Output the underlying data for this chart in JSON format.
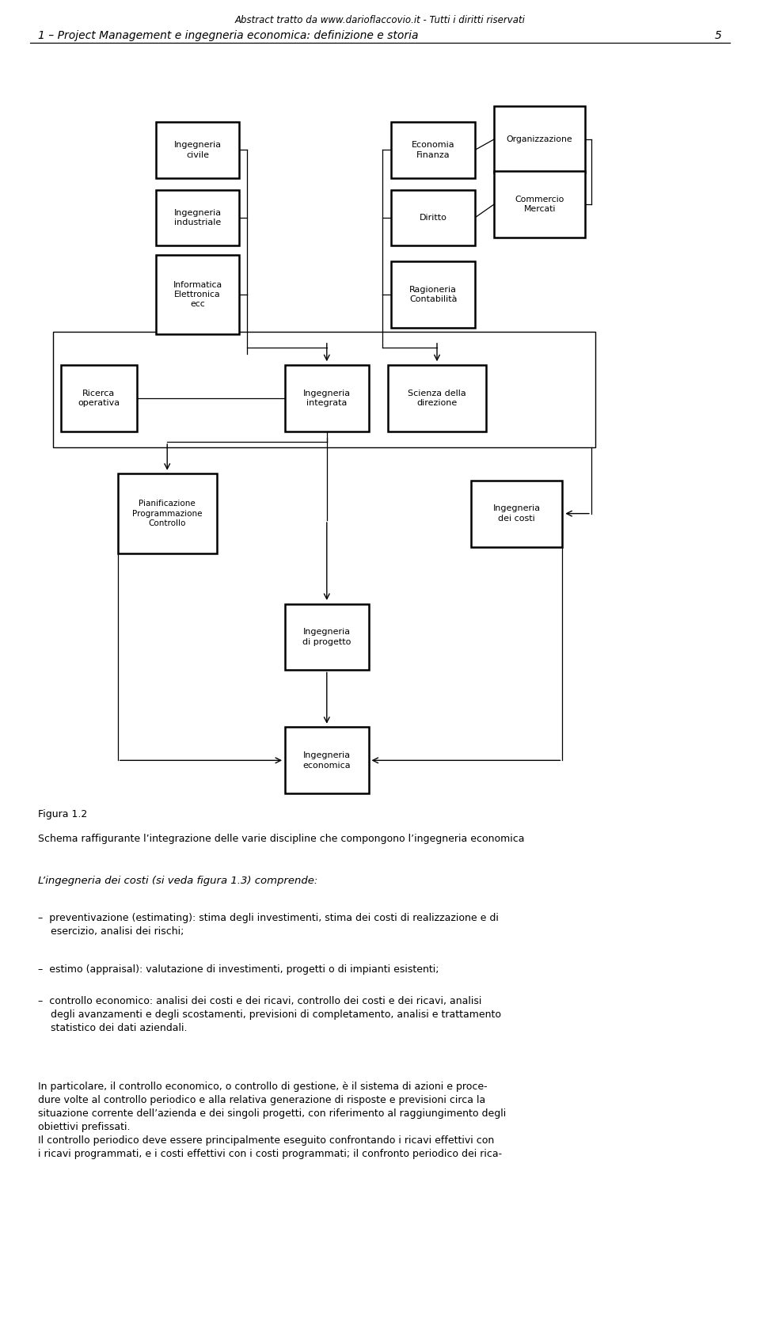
{
  "header": "Abstract tratto da www.darioflaccovio.it - Tutti i diritti riservati",
  "chapter_line": "1 – Project Management e ingegneria economica: definizione e storia",
  "page_num": "5",
  "bg_color": "#ffffff",
  "box_edge_color": "#000000",
  "text_color": "#000000",
  "line_color": "#000000",
  "caption_line1": "Figura 1.2",
  "caption_line2": "Schema raffigurante l’integrazione delle varie discipline che compongono l’ingegneria economica",
  "body_intro": "L’ingegneria dei costi (si veda figura 1.3) comprende:",
  "body_bullets": [
    "–  preventivazione (estimating): stima degli investimenti, stima dei costi di realizzazione e di\n    esercizio, analisi dei rischi;",
    "–  estimo (appraisal): valutazione di investimenti, progetti o di impianti esistenti;",
    "–  controllo economico: analisi dei costi e dei ricavi, controllo dei costi e dei ricavi, analisi\n    degli avanzamenti e degli scostamenti, previsioni di completamento, analisi e trattamento\n    statistico dei dati aziendali."
  ],
  "body_para": "In particolare, il controllo economico, o controllo di gestione, è il sistema di azioni e proce-\ndure volte al controllo periodico e alla relativa generazione di risposte e previsioni circa la\nsituazione corrente dell’azienda e dei singoli progetti, con riferimento al raggiungimento degli\nobiettivi prefissati.\nIl controllo periodico deve essere principalmente eseguito confrontando i ricavi effettivi con\ni ricavi programmati, e i costi effettivi con i costi programmati; il confronto periodico dei rica-"
}
